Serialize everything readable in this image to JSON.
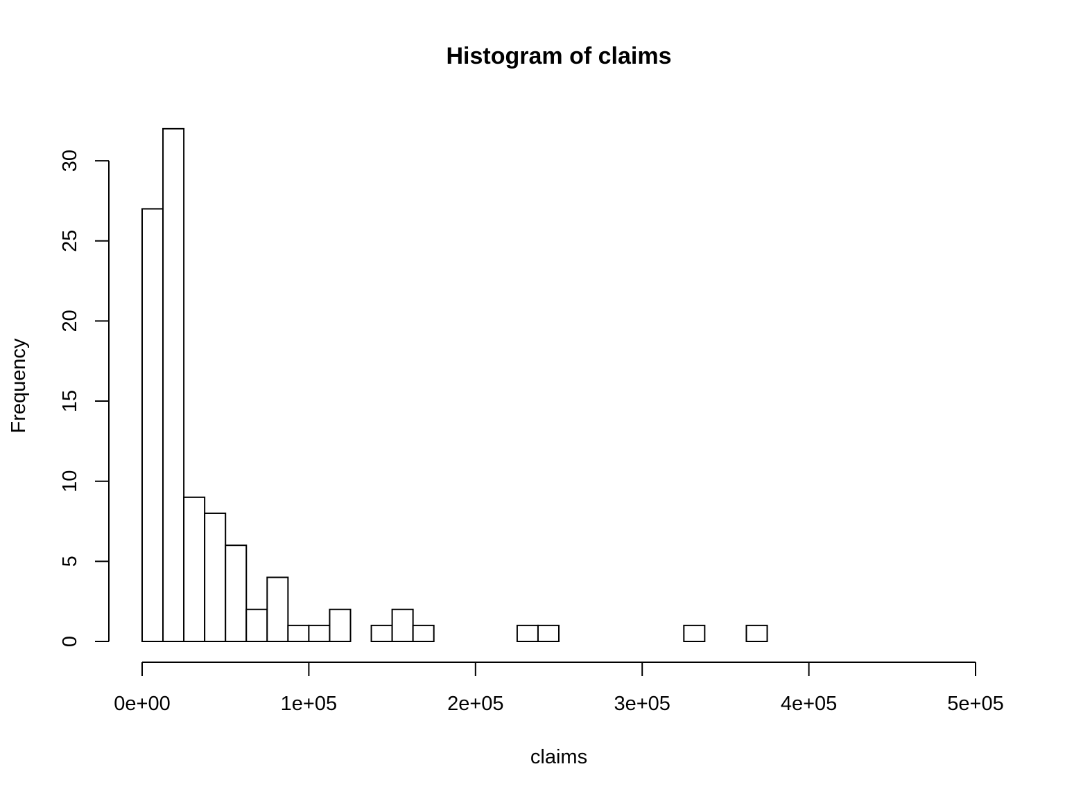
{
  "chart_data": {
    "type": "bar",
    "title": "Histogram of claims",
    "xlabel": "claims",
    "ylabel": "Frequency",
    "xlim": [
      0,
      500000
    ],
    "ylim": [
      0,
      32
    ],
    "bin_width": 12500,
    "bins": [
      {
        "start": 0,
        "end": 12500,
        "count": 27
      },
      {
        "start": 12500,
        "end": 25000,
        "count": 32
      },
      {
        "start": 25000,
        "end": 37500,
        "count": 9
      },
      {
        "start": 37500,
        "end": 50000,
        "count": 8
      },
      {
        "start": 50000,
        "end": 62500,
        "count": 6
      },
      {
        "start": 62500,
        "end": 75000,
        "count": 2
      },
      {
        "start": 75000,
        "end": 87500,
        "count": 4
      },
      {
        "start": 87500,
        "end": 100000,
        "count": 1
      },
      {
        "start": 100000,
        "end": 112500,
        "count": 1
      },
      {
        "start": 112500,
        "end": 125000,
        "count": 2
      },
      {
        "start": 125000,
        "end": 137500,
        "count": 0
      },
      {
        "start": 137500,
        "end": 150000,
        "count": 1
      },
      {
        "start": 150000,
        "end": 162500,
        "count": 2
      },
      {
        "start": 162500,
        "end": 175000,
        "count": 1
      },
      {
        "start": 175000,
        "end": 187500,
        "count": 0
      },
      {
        "start": 187500,
        "end": 200000,
        "count": 0
      },
      {
        "start": 200000,
        "end": 212500,
        "count": 0
      },
      {
        "start": 212500,
        "end": 225000,
        "count": 0
      },
      {
        "start": 225000,
        "end": 237500,
        "count": 1
      },
      {
        "start": 237500,
        "end": 250000,
        "count": 1
      },
      {
        "start": 250000,
        "end": 262500,
        "count": 0
      },
      {
        "start": 262500,
        "end": 275000,
        "count": 0
      },
      {
        "start": 275000,
        "end": 287500,
        "count": 0
      },
      {
        "start": 287500,
        "end": 300000,
        "count": 0
      },
      {
        "start": 300000,
        "end": 312500,
        "count": 0
      },
      {
        "start": 312500,
        "end": 325000,
        "count": 0
      },
      {
        "start": 325000,
        "end": 337500,
        "count": 1
      },
      {
        "start": 337500,
        "end": 350000,
        "count": 0
      },
      {
        "start": 350000,
        "end": 362500,
        "count": 0
      },
      {
        "start": 362500,
        "end": 375000,
        "count": 1
      },
      {
        "start": 375000,
        "end": 387500,
        "count": 0
      },
      {
        "start": 387500,
        "end": 400000,
        "count": 0
      },
      {
        "start": 400000,
        "end": 412500,
        "count": 0
      },
      {
        "start": 412500,
        "end": 425000,
        "count": 0
      },
      {
        "start": 425000,
        "end": 437500,
        "count": 0
      },
      {
        "start": 437500,
        "end": 450000,
        "count": 0
      },
      {
        "start": 450000,
        "end": 462500,
        "count": 0
      },
      {
        "start": 462500,
        "end": 475000,
        "count": 0
      },
      {
        "start": 475000,
        "end": 487500,
        "count": 0
      },
      {
        "start": 487500,
        "end": 500000,
        "count": 0
      }
    ],
    "x_ticks": [
      {
        "value": 0,
        "label": "0e+00"
      },
      {
        "value": 100000,
        "label": "1e+05"
      },
      {
        "value": 200000,
        "label": "2e+05"
      },
      {
        "value": 300000,
        "label": "3e+05"
      },
      {
        "value": 400000,
        "label": "4e+05"
      },
      {
        "value": 500000,
        "label": "5e+05"
      }
    ],
    "y_ticks": [
      {
        "value": 0,
        "label": "0"
      },
      {
        "value": 5,
        "label": "5"
      },
      {
        "value": 10,
        "label": "10"
      },
      {
        "value": 15,
        "label": "15"
      },
      {
        "value": 20,
        "label": "20"
      },
      {
        "value": 25,
        "label": "25"
      },
      {
        "value": 30,
        "label": "30"
      }
    ],
    "grid": false,
    "colors": {
      "bar_fill": "#ffffff",
      "bar_stroke": "#000000",
      "axis": "#000000"
    }
  }
}
